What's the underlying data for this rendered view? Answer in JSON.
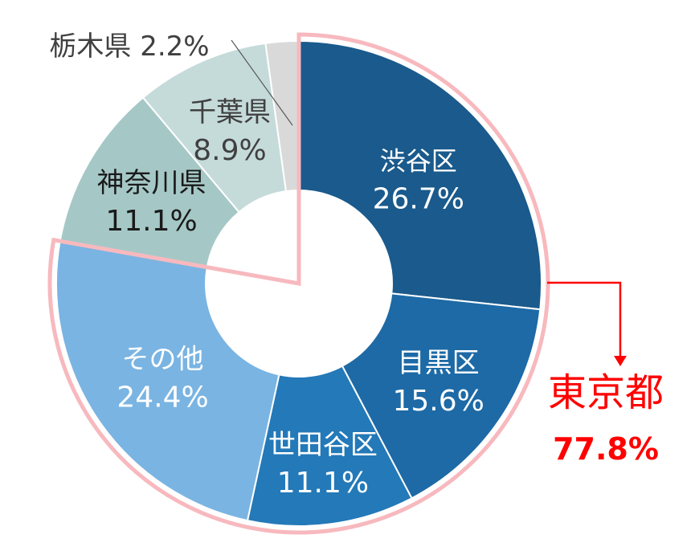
{
  "chart_data": {
    "type": "pie",
    "variant": "donut",
    "title": "",
    "slices": [
      {
        "label": "渋谷区",
        "value": 26.7,
        "display": "26.7%",
        "color": "#1a5a8c",
        "text_color": "#ffffff"
      },
      {
        "label": "目黒区",
        "value": 15.6,
        "display": "15.6%",
        "color": "#1d6aa6",
        "text_color": "#ffffff"
      },
      {
        "label": "世田谷区",
        "value": 11.1,
        "display": "11.1%",
        "color": "#2479b8",
        "text_color": "#ffffff"
      },
      {
        "label": "その他",
        "value": 24.4,
        "display": "24.4%",
        "color": "#7ab4e2",
        "text_color": "#ffffff"
      },
      {
        "label": "神奈川県",
        "value": 11.1,
        "display": "11.1%",
        "color": "#a5c8c6",
        "text_color": "#1a1a1a"
      },
      {
        "label": "千葉県",
        "value": 8.9,
        "display": "8.9%",
        "color": "#c5dbda",
        "text_color": "#404040"
      },
      {
        "label": "栃木県",
        "value": 2.2,
        "display": "2.2%",
        "color": "#d9d9d9",
        "text_color": "#404040"
      }
    ],
    "group_annotation": {
      "label": "東京都",
      "value": "77.8%",
      "members": [
        "渋谷区",
        "目黒区",
        "世田谷区",
        "その他"
      ],
      "highlight_color": "#f7b9be",
      "text_color": "#ff0000"
    }
  }
}
